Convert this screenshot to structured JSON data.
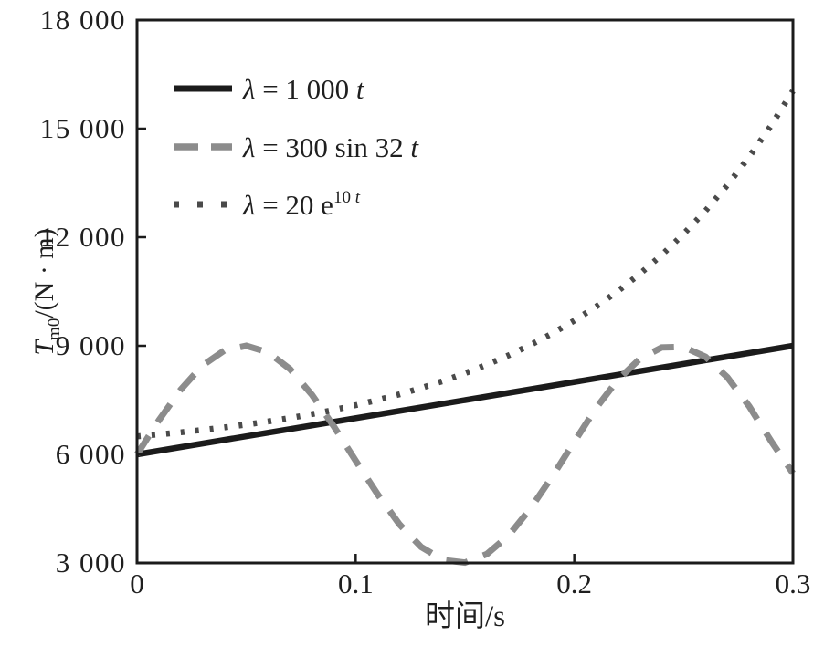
{
  "figure": {
    "background": "#ffffff",
    "frame_color": "#1b1b1b",
    "text_color": "#1f1f1f"
  },
  "chart_data": {
    "type": "line",
    "title": "",
    "xlabel": "时间/s",
    "ylabel_parts": [
      {
        "t": "T",
        "i": true
      },
      {
        "t": "m0",
        "sub": true
      },
      {
        "t": "/(N · m)"
      }
    ],
    "xlim": [
      0,
      0.3
    ],
    "ylim": [
      3000,
      18000
    ],
    "grid": false,
    "legend_position": "upper-left-inside",
    "xticks": [
      {
        "v": 0,
        "label": "0"
      },
      {
        "v": 0.1,
        "label": "0.1"
      },
      {
        "v": 0.2,
        "label": "0.2"
      },
      {
        "v": 0.3,
        "label": "0.3"
      }
    ],
    "yticks": [
      {
        "v": 3000,
        "label": "3 000"
      },
      {
        "v": 6000,
        "label": "6 000"
      },
      {
        "v": 9000,
        "label": "9 000"
      },
      {
        "v": 12000,
        "label": "12 000"
      },
      {
        "v": 15000,
        "label": "15 000"
      },
      {
        "v": 18000,
        "label": "18 000"
      }
    ],
    "series": [
      {
        "name": "lambda-1000t",
        "label_parts": [
          {
            "t": "λ",
            "i": true
          },
          {
            "t": " = 1 000 "
          },
          {
            "t": "t",
            "i": true
          }
        ],
        "line_style": "solid",
        "color": "#1b1b1b",
        "width": 6.5,
        "x": [
          0,
          0.3
        ],
        "y": [
          6000,
          9000
        ]
      },
      {
        "name": "lambda-300sin32t",
        "label_parts": [
          {
            "t": "λ",
            "i": true
          },
          {
            "t": " = 300 sin 32 "
          },
          {
            "t": "t",
            "i": true
          }
        ],
        "line_style": "dashed",
        "color": "#8c8c8c",
        "width": 7,
        "x": [
          0,
          0.01,
          0.02,
          0.03,
          0.04,
          0.05,
          0.06,
          0.07,
          0.08,
          0.09,
          0.1,
          0.11,
          0.12,
          0.13,
          0.14,
          0.15,
          0.16,
          0.17,
          0.18,
          0.19,
          0.2,
          0.21,
          0.22,
          0.23,
          0.24,
          0.25,
          0.26,
          0.27,
          0.28,
          0.29,
          0.3
        ],
        "y": [
          6000,
          6944,
          7792,
          8458,
          8874,
          8999,
          8819,
          8355,
          7646,
          6774,
          5825,
          4900,
          4069,
          3441,
          3081,
          3011,
          3245,
          3759,
          4511,
          5394,
          6350,
          7282,
          8068,
          8639,
          8955,
          8968,
          8696,
          8131,
          7328,
          6367,
          5477
        ]
      },
      {
        "name": "lambda-20e10t",
        "label_parts": [
          {
            "t": "λ",
            "i": true
          },
          {
            "t": " = 20 e"
          },
          {
            "t": "10 ",
            "sup": true
          },
          {
            "t": "t",
            "sup": true,
            "i": true
          }
        ],
        "line_style": "dotted",
        "color": "#4a4a4a",
        "width": 6.5,
        "x": [
          0,
          0.01,
          0.02,
          0.03,
          0.04,
          0.05,
          0.06,
          0.07,
          0.08,
          0.09,
          0.1,
          0.11,
          0.12,
          0.13,
          0.14,
          0.15,
          0.16,
          0.17,
          0.18,
          0.19,
          0.2,
          0.21,
          0.22,
          0.23,
          0.24,
          0.25,
          0.26,
          0.27,
          0.28,
          0.29,
          0.3
        ],
        "y": [
          6500,
          6553,
          6611,
          6675,
          6746,
          6824,
          6911,
          7007,
          7113,
          7230,
          7359,
          7502,
          7660,
          7835,
          8028,
          8241,
          8477,
          8737,
          9025,
          9343,
          9695,
          10083,
          10513,
          10987,
          11512,
          12091,
          12732,
          13440,
          14222,
          15087,
          16043
        ]
      }
    ]
  }
}
